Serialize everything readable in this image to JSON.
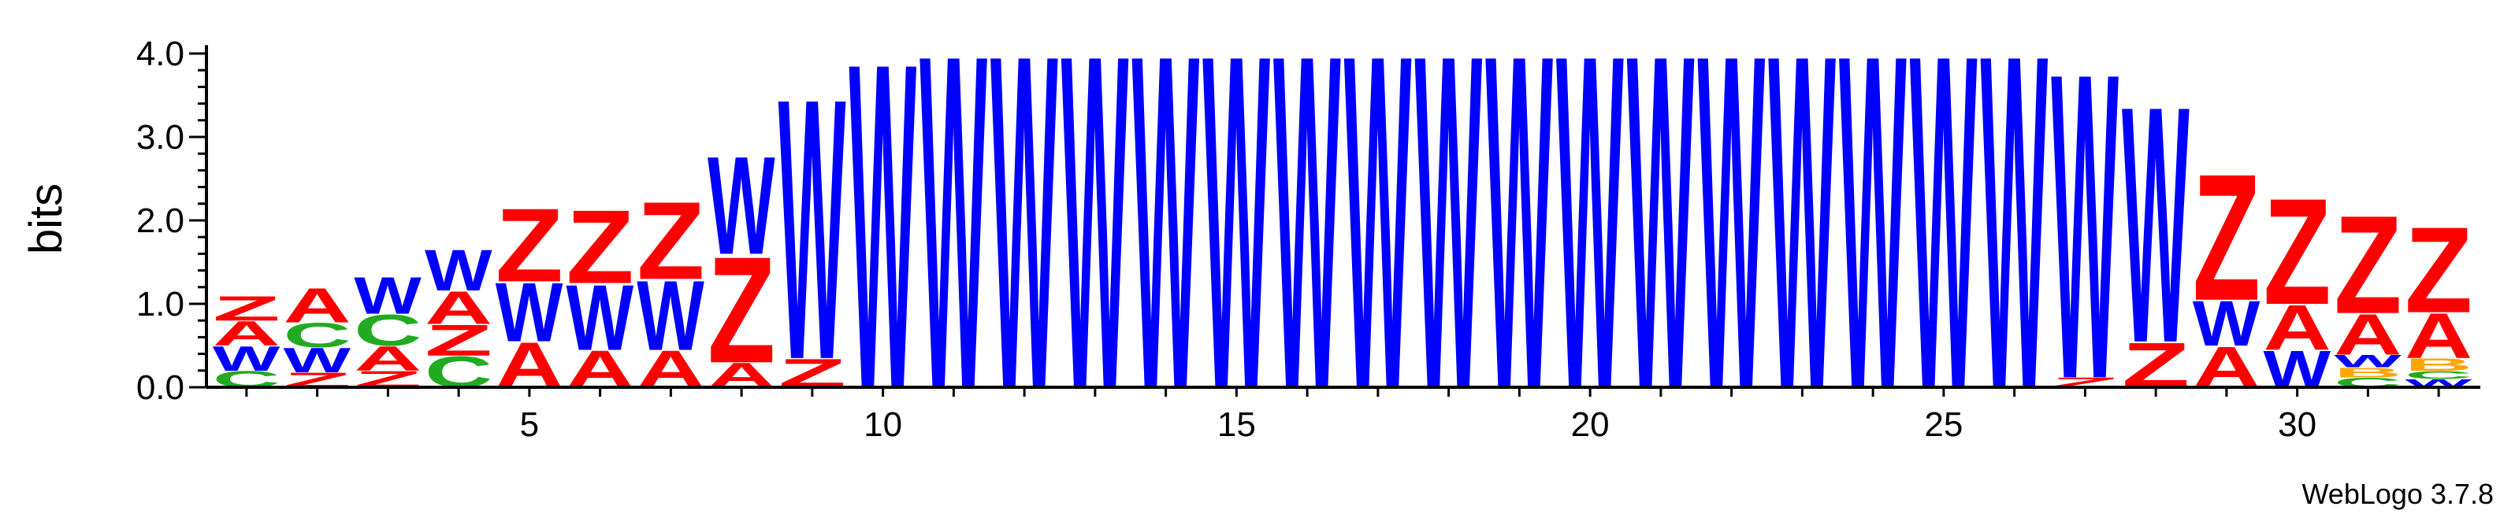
{
  "chart_data": {
    "type": "sequence_logo",
    "ylabel": "bits",
    "ylim": [
      0,
      4.1
    ],
    "y_ticks": [
      "0.0",
      "1.0",
      "2.0",
      "3.0",
      "4.0"
    ],
    "y_tick_values": [
      0,
      1,
      2,
      3,
      4
    ],
    "x_ticks": [
      "5",
      "10",
      "15",
      "20",
      "25",
      "30"
    ],
    "x_tick_values": [
      5,
      10,
      15,
      20,
      25,
      30
    ],
    "positions": [
      1,
      32
    ],
    "colors": {
      "Z": "#ff0000",
      "A": "#ff0000",
      "W": "#0000ff",
      "C": "#22aa22",
      "B": "#ffa500"
    },
    "columns": [
      {
        "pos": 1,
        "stack": [
          [
            "C",
            0.2
          ],
          [
            "W",
            0.3
          ],
          [
            "A",
            0.3
          ],
          [
            "Z",
            0.3
          ]
        ]
      },
      {
        "pos": 2,
        "stack": [
          [
            "Z",
            0.18
          ],
          [
            "W",
            0.3
          ],
          [
            "C",
            0.3
          ],
          [
            "A",
            0.42
          ]
        ]
      },
      {
        "pos": 3,
        "stack": [
          [
            "Z",
            0.2
          ],
          [
            "A",
            0.3
          ],
          [
            "C",
            0.38
          ],
          [
            "W",
            0.45
          ]
        ]
      },
      {
        "pos": 4,
        "stack": [
          [
            "C",
            0.38
          ],
          [
            "Z",
            0.38
          ],
          [
            "A",
            0.4
          ],
          [
            "W",
            0.5
          ]
        ]
      },
      {
        "pos": 5,
        "stack": [
          [
            "A",
            0.55
          ],
          [
            "W",
            0.72
          ],
          [
            "Z",
            0.9
          ]
        ]
      },
      {
        "pos": 6,
        "stack": [
          [
            "A",
            0.45
          ],
          [
            "W",
            0.8
          ],
          [
            "Z",
            0.9
          ]
        ]
      },
      {
        "pos": 7,
        "stack": [
          [
            "A",
            0.45
          ],
          [
            "W",
            0.85
          ],
          [
            "Z",
            0.95
          ]
        ]
      },
      {
        "pos": 8,
        "stack": [
          [
            "A",
            0.3
          ],
          [
            "Z",
            1.3
          ],
          [
            "W",
            1.2
          ]
        ]
      },
      {
        "pos": 9,
        "stack": [
          [
            "Z",
            0.35
          ],
          [
            "W",
            3.2
          ]
        ]
      },
      {
        "pos": 10,
        "stack": [
          [
            "W",
            4.0
          ]
        ]
      },
      {
        "pos": 11,
        "stack": [
          [
            "W",
            4.1
          ]
        ]
      },
      {
        "pos": 12,
        "stack": [
          [
            "W",
            4.1
          ]
        ]
      },
      {
        "pos": 13,
        "stack": [
          [
            "W",
            4.1
          ]
        ]
      },
      {
        "pos": 14,
        "stack": [
          [
            "W",
            4.1
          ]
        ]
      },
      {
        "pos": 15,
        "stack": [
          [
            "W",
            4.1
          ]
        ]
      },
      {
        "pos": 16,
        "stack": [
          [
            "W",
            4.1
          ]
        ]
      },
      {
        "pos": 17,
        "stack": [
          [
            "W",
            4.1
          ]
        ]
      },
      {
        "pos": 18,
        "stack": [
          [
            "W",
            4.1
          ]
        ]
      },
      {
        "pos": 19,
        "stack": [
          [
            "W",
            4.1
          ]
        ]
      },
      {
        "pos": 20,
        "stack": [
          [
            "W",
            4.1
          ]
        ]
      },
      {
        "pos": 21,
        "stack": [
          [
            "W",
            4.1
          ]
        ]
      },
      {
        "pos": 22,
        "stack": [
          [
            "W",
            4.1
          ]
        ]
      },
      {
        "pos": 23,
        "stack": [
          [
            "W",
            4.1
          ]
        ]
      },
      {
        "pos": 24,
        "stack": [
          [
            "W",
            4.1
          ]
        ]
      },
      {
        "pos": 25,
        "stack": [
          [
            "W",
            4.1
          ]
        ]
      },
      {
        "pos": 26,
        "stack": [
          [
            "W",
            4.1
          ]
        ]
      },
      {
        "pos": 27,
        "stack": [
          [
            "Z",
            0.12
          ],
          [
            "W",
            3.75
          ]
        ]
      },
      {
        "pos": 28,
        "stack": [
          [
            "Z",
            0.55
          ],
          [
            "W",
            2.9
          ]
        ]
      },
      {
        "pos": 29,
        "stack": [
          [
            "A",
            0.5
          ],
          [
            "W",
            0.55
          ],
          [
            "Z",
            1.55
          ]
        ]
      },
      {
        "pos": 30,
        "stack": [
          [
            "W",
            0.45
          ],
          [
            "A",
            0.55
          ],
          [
            "Z",
            1.3
          ]
        ]
      },
      {
        "pos": 31,
        "stack": [
          [
            "C",
            0.12
          ],
          [
            "B",
            0.12
          ],
          [
            "W",
            0.15
          ],
          [
            "A",
            0.5
          ],
          [
            "Z",
            1.2
          ]
        ]
      },
      {
        "pos": 32,
        "stack": [
          [
            "W",
            0.1
          ],
          [
            "C",
            0.1
          ],
          [
            "B",
            0.15
          ],
          [
            "A",
            0.55
          ],
          [
            "Z",
            1.05
          ]
        ]
      }
    ]
  },
  "credit": "WebLogo 3.7.8"
}
